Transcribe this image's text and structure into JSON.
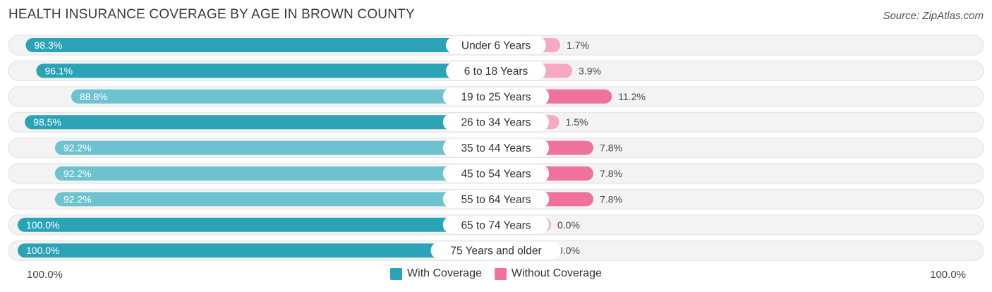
{
  "title": "HEALTH INSURANCE COVERAGE BY AGE IN BROWN COUNTY",
  "source": "Source: ZipAtlas.com",
  "colors": {
    "with_strong": "#2aa3b7",
    "with_light": "#6cc3cf",
    "without_strong": "#f0729b",
    "without_light": "#f6a9c3",
    "track": "#efefef"
  },
  "legend": {
    "with_label": "With Coverage",
    "without_label": "Without Coverage"
  },
  "axis": {
    "left_label": "100.0%",
    "right_label": "100.0%"
  },
  "chart_data": {
    "type": "bar",
    "orientation": "horizontal-diverging",
    "title": "HEALTH INSURANCE COVERAGE BY AGE IN BROWN COUNTY",
    "categories": [
      "Under 6 Years",
      "6 to 18 Years",
      "19 to 25 Years",
      "26 to 34 Years",
      "35 to 44 Years",
      "45 to 54 Years",
      "55 to 64 Years",
      "65 to 74 Years",
      "75 Years and older"
    ],
    "series": [
      {
        "name": "With Coverage",
        "values": [
          98.3,
          96.1,
          88.8,
          98.5,
          92.2,
          92.2,
          92.2,
          100.0,
          100.0
        ],
        "labels": [
          "98.3%",
          "96.1%",
          "88.8%",
          "98.5%",
          "92.2%",
          "92.2%",
          "92.2%",
          "100.0%",
          "100.0%"
        ]
      },
      {
        "name": "Without Coverage",
        "values": [
          1.7,
          3.9,
          11.2,
          1.5,
          7.8,
          7.8,
          7.8,
          0.0,
          0.0
        ],
        "labels": [
          "1.7%",
          "3.9%",
          "11.2%",
          "1.5%",
          "7.8%",
          "7.8%",
          "7.8%",
          "0.0%",
          "0.0%"
        ]
      }
    ],
    "xlim": [
      0,
      100
    ],
    "legend_position": "bottom-center"
  }
}
